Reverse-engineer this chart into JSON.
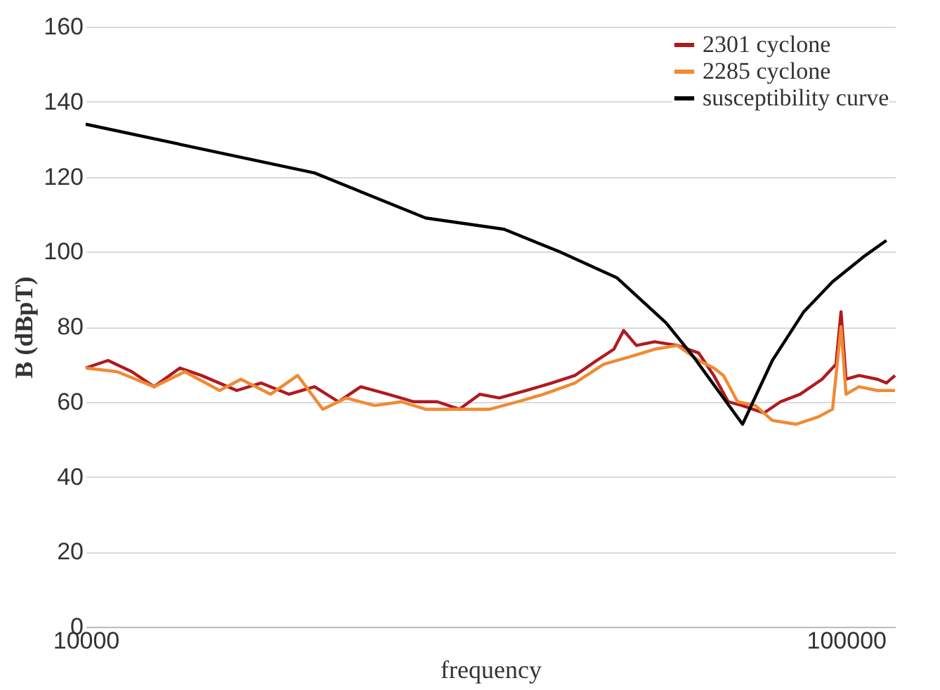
{
  "chart_data": {
    "type": "line",
    "xlabel": "frequency",
    "ylabel": "B (dBpT)",
    "xlim": [
      10000,
      116000
    ],
    "xticks": [
      10000,
      100000
    ],
    "ylim": [
      0,
      160
    ],
    "yticks": [
      0,
      20,
      40,
      60,
      80,
      100,
      120,
      140,
      160
    ],
    "log": "x",
    "grid": "y",
    "legend": "top right",
    "line_style": "solid",
    "marker": "none",
    "series": [
      {
        "name": "2301 cyclone",
        "color": "#b01a1f",
        "x": [
          10000,
          10700,
          11500,
          12300,
          13300,
          14200,
          15800,
          17000,
          18500,
          20000,
          21500,
          23000,
          25000,
          27000,
          29000,
          31000,
          33000,
          35000,
          38000,
          41000,
          44000,
          47000,
          49500,
          51000,
          53000,
          56000,
          60000,
          64000,
          67000,
          70000,
          73000,
          78000,
          82000,
          87000,
          93000,
          97000,
          98500,
          100000,
          104000,
          110000,
          113000,
          116000
        ],
        "values": [
          69,
          71,
          68,
          64,
          69,
          67,
          63,
          65,
          62,
          64,
          60,
          64,
          62,
          60,
          60,
          58,
          62,
          61,
          63,
          65,
          67,
          71,
          74,
          79,
          75,
          76,
          75,
          73,
          67,
          60,
          59,
          57,
          60,
          62,
          66,
          70,
          84,
          66,
          67,
          66,
          65,
          67
        ]
      },
      {
        "name": "2285 cyclone",
        "color": "#f08a34",
        "x": [
          10000,
          11000,
          12300,
          13500,
          15000,
          16000,
          17500,
          19000,
          20500,
          22000,
          24000,
          26000,
          28000,
          31000,
          34000,
          37000,
          40000,
          44000,
          48000,
          52000,
          56000,
          60000,
          64000,
          67000,
          69000,
          72000,
          76000,
          80000,
          86000,
          92000,
          96000,
          98500,
          100000,
          104000,
          110000,
          116000
        ],
        "values": [
          69,
          68,
          64,
          68,
          63,
          66,
          62,
          67,
          58,
          61,
          59,
          60,
          58,
          58,
          58,
          60,
          62,
          65,
          70,
          72,
          74,
          75,
          71,
          69,
          67,
          60,
          59,
          55,
          54,
          56,
          58,
          80,
          62,
          64,
          63,
          63
        ]
      },
      {
        "name": "susceptibility curve",
        "color": "#000000",
        "x": [
          10000,
          20000,
          28000,
          35500,
          42000,
          50000,
          58000,
          63000,
          73100,
          80000,
          88000,
          96000,
          106000,
          113000
        ],
        "values": [
          134,
          121,
          109,
          106,
          100,
          93,
          81,
          72,
          54,
          71,
          84,
          92,
          99,
          103
        ]
      }
    ]
  }
}
